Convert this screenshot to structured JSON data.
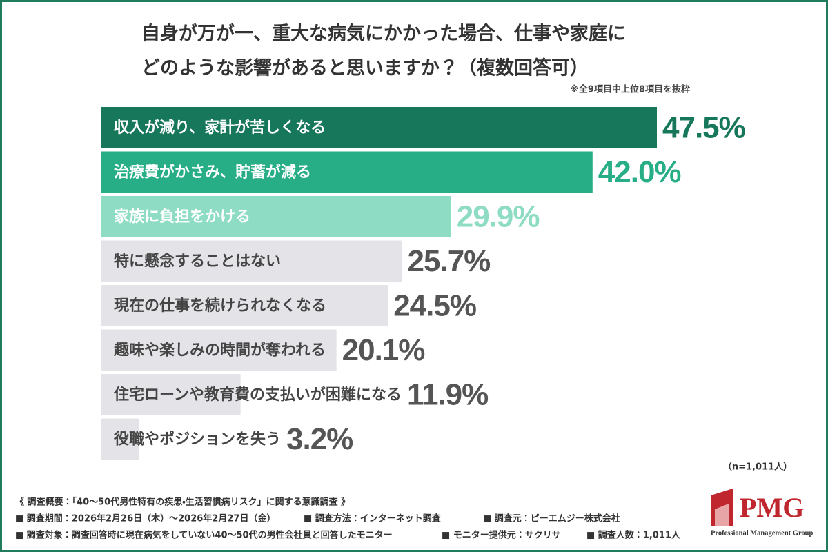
{
  "chart_data": {
    "type": "bar",
    "title": [
      "自身が万が一、重大な病気にかかった場合、仕事や家庭に",
      "どのような影響があると思いますか？（複数回答可）"
    ],
    "note": "※全9項目中上位8項目を抜粋",
    "categories": [
      "収入が減り、家計が苦しくなる",
      "治療費がかさみ、貯蓄が減る",
      "家族に負担をかける",
      "特に懸念することはない",
      "現在の仕事を続けられなくなる",
      "趣味や楽しみの時間が奪われる",
      "住宅ローンや教育費の支払いが困難になる",
      "役職やポジションを失う"
    ],
    "values": [
      47.5,
      42.0,
      29.9,
      25.7,
      24.5,
      20.1,
      11.9,
      3.2
    ],
    "value_labels": [
      "47.5%",
      "42.0%",
      "29.9%",
      "25.7%",
      "24.5%",
      "20.1%",
      "11.9%",
      "3.2%"
    ],
    "colors": [
      "#17775b",
      "#27ae87",
      "#8ddcc3",
      "#e4e3e7",
      "#e4e3e7",
      "#e4e3e7",
      "#e4e3e7",
      "#e4e3e7"
    ],
    "label_colors": [
      "#ffffff",
      "#ffffff",
      "#ffffff",
      "#444444",
      "#444444",
      "#444444",
      "#444444",
      "#444444"
    ],
    "value_colors": [
      "#17775b",
      "#27ae87",
      "#8ddcc3",
      "#555555",
      "#555555",
      "#555555",
      "#555555",
      "#555555"
    ],
    "sample_note": "（n=1,011人）"
  },
  "survey": {
    "heading": "《 調査概要：「40～50代男性特有の疾患・生活習慣病リスク」に関する意識調査 》",
    "rows": [
      [
        "■ 調査期間：2026年2月26日（木）～2026年2月27日（金）",
        "■ 調査方法：インターネット調査",
        "■ 調査元：ピーエムジー株式会社"
      ],
      [
        "■ 調査対象：調査回答時に現在病気をしていない40～50代の男性会社員と回答したモニター",
        "■ モニター提供元：サクリサ",
        "■ 調査人数：1,011人"
      ]
    ]
  },
  "logo": {
    "text": "PMG",
    "subtitle": "Professional Management Group"
  }
}
